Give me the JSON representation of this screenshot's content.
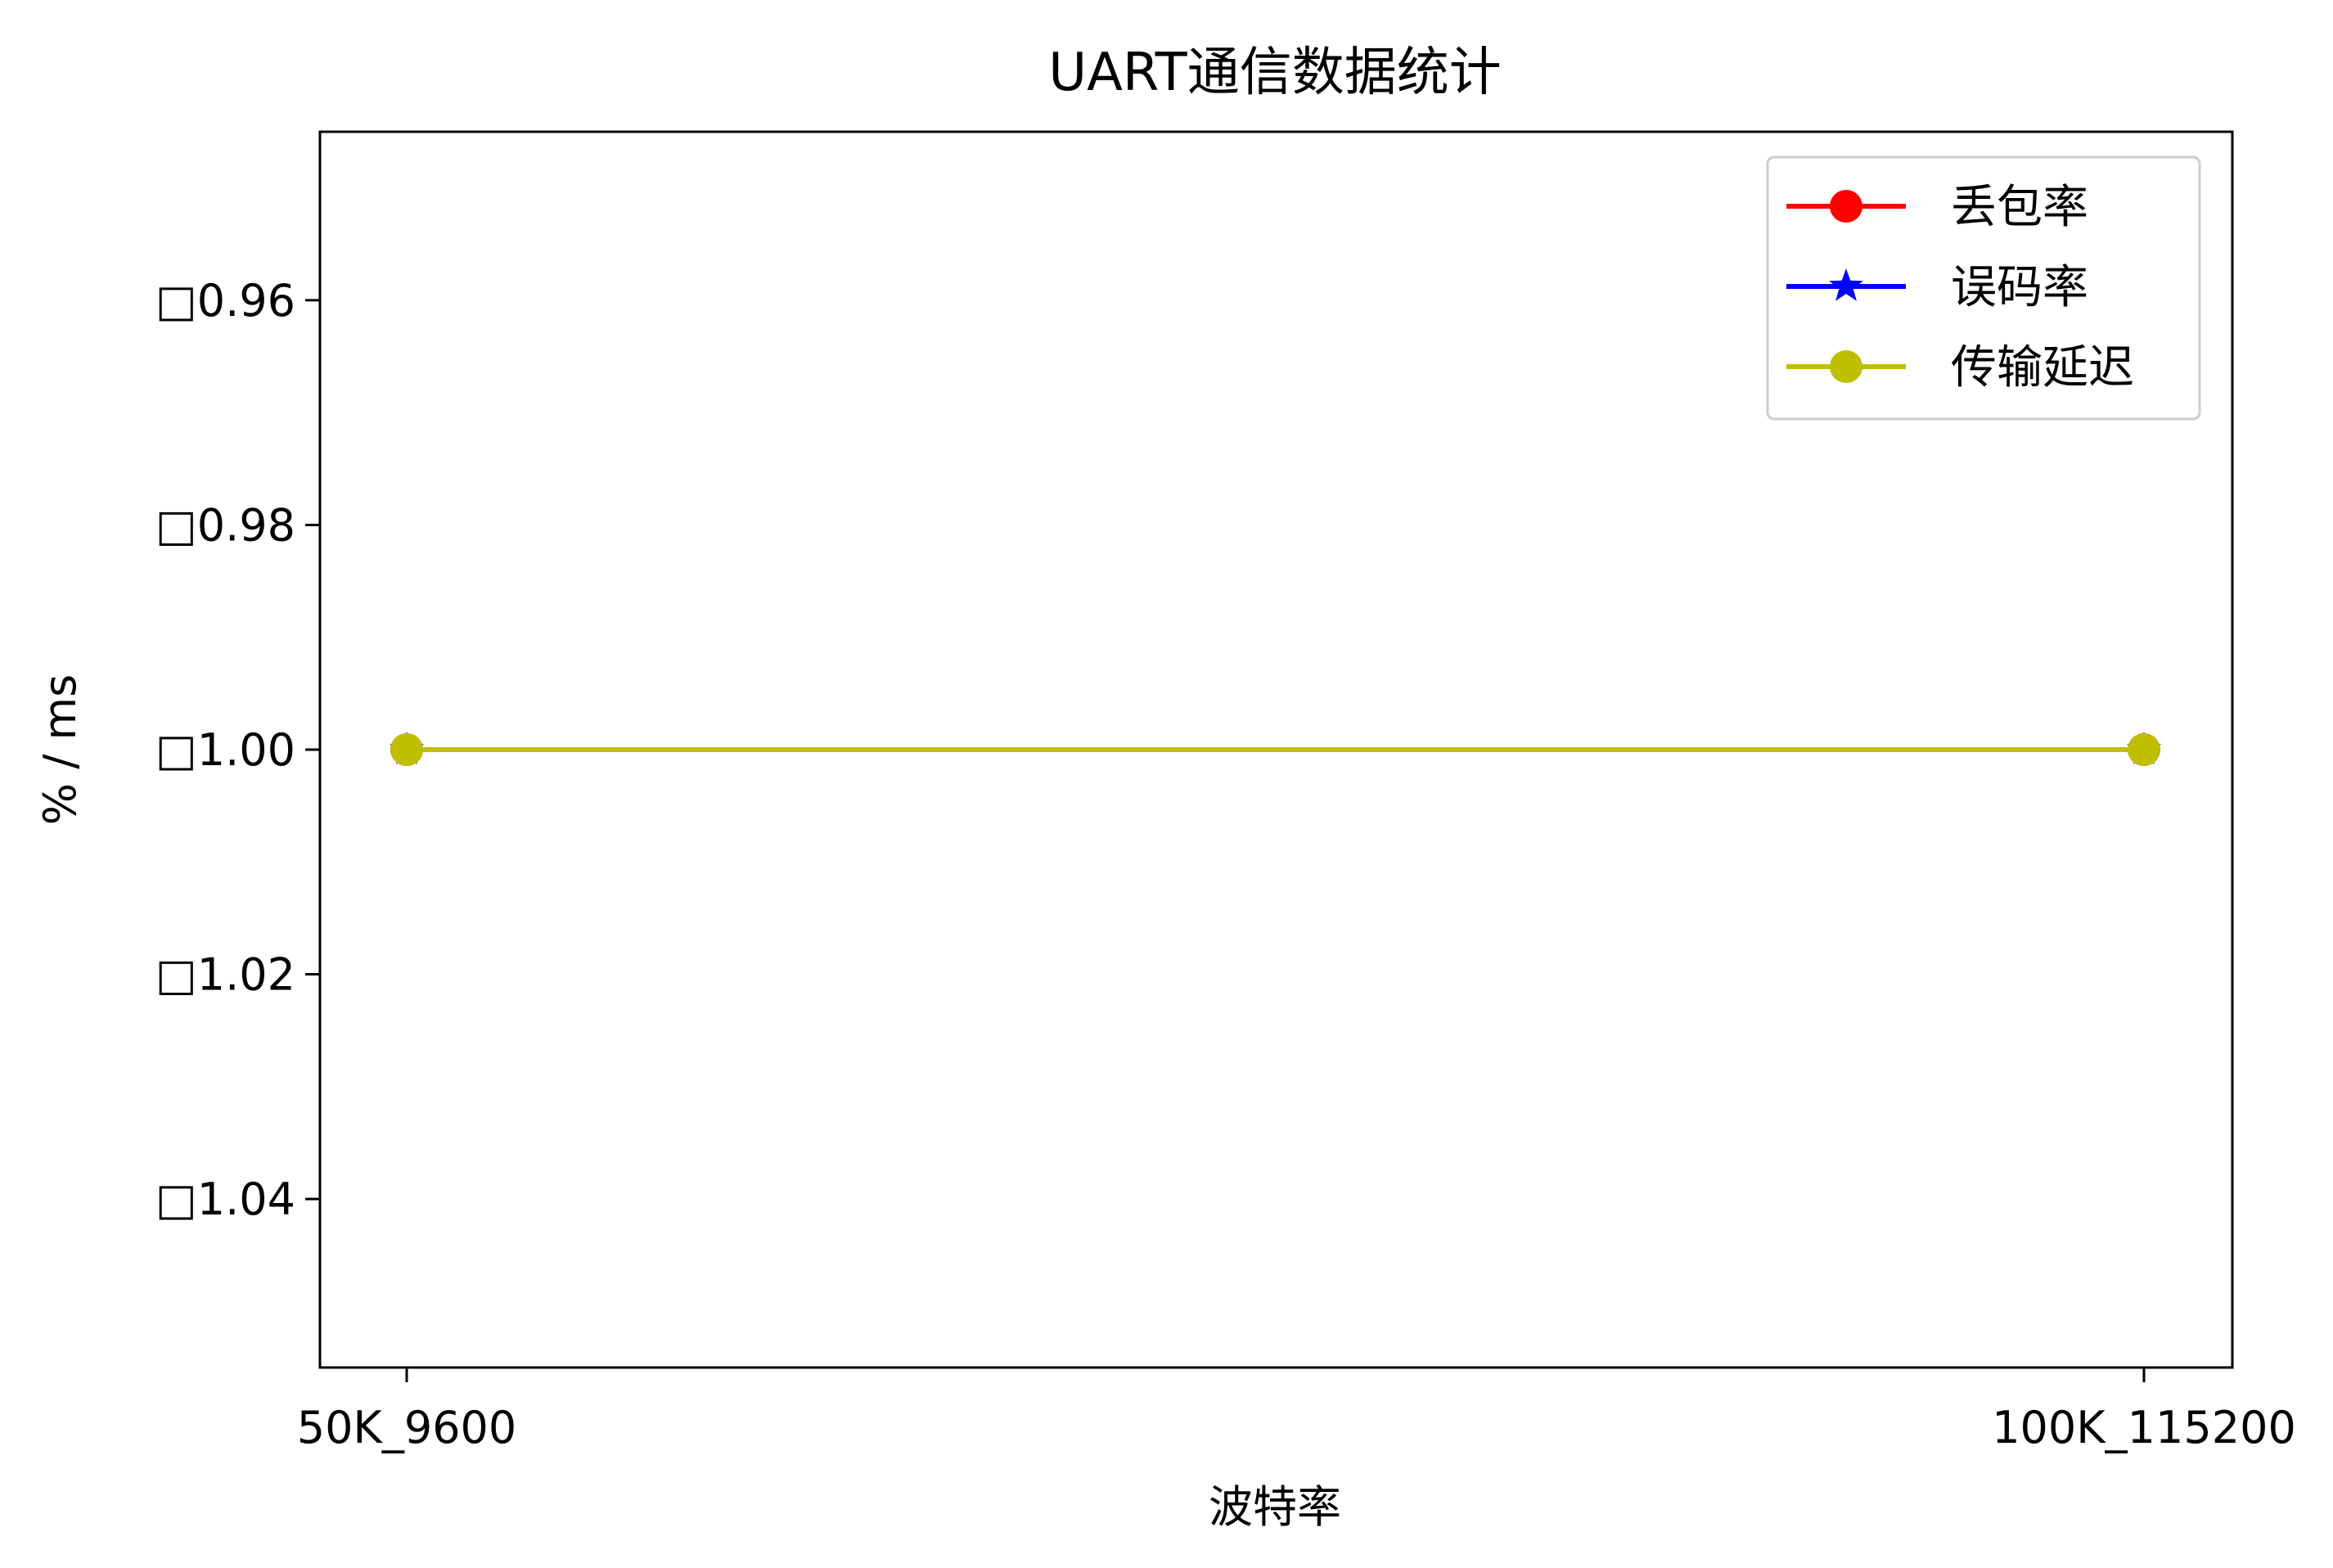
{
  "chart_data": {
    "type": "line",
    "title": "UART通信数据统计",
    "xlabel": "波特率",
    "ylabel": "% / ms",
    "categories": [
      "50K_9600",
      "100K_115200"
    ],
    "y_ticks": [
      "□0.96",
      "□0.98",
      "□1.00",
      "□1.02",
      "□1.04"
    ],
    "y_tick_values": [
      -0.96,
      -0.98,
      -1.0,
      -1.02,
      -1.04
    ],
    "ylim": [
      -1.055,
      -0.945
    ],
    "series": [
      {
        "name": "丢包率",
        "values": [
          -1.0,
          -1.0
        ],
        "color": "#ff0000",
        "marker": "circle"
      },
      {
        "name": "误码率",
        "values": [
          -1.0,
          -1.0
        ],
        "color": "#0000ff",
        "marker": "star"
      },
      {
        "name": "传输延迟",
        "values": [
          -1.0,
          -1.0
        ],
        "color": "#bfbf00",
        "marker": "circle"
      }
    ],
    "legend_position": "top-right",
    "grid": false
  }
}
